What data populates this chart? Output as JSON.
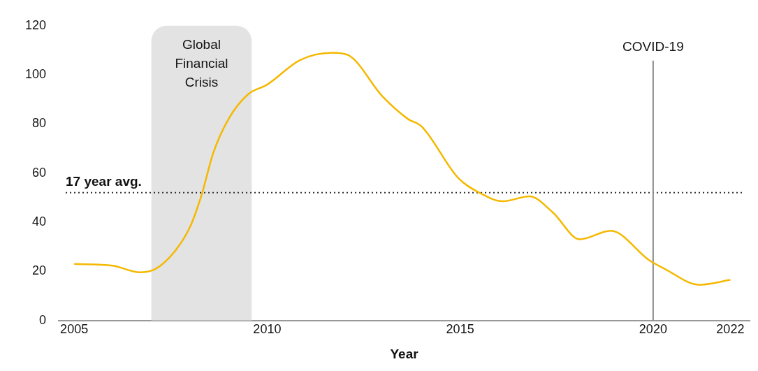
{
  "chart_data": {
    "type": "line",
    "xlabel": "Year",
    "x": [
      2005,
      2006,
      2006.7,
      2007.1,
      2007.6,
      2008,
      2008.3,
      2008.6,
      2009,
      2009.5,
      2010,
      2010.85,
      2011.7,
      2012.1,
      2013,
      2013.65,
      2014,
      2014.95,
      2015.5,
      2016.1,
      2016.8,
      2017.4,
      2018.1,
      2018.9,
      2019.9,
      2020.3,
      2021.2,
      2022
    ],
    "series": [
      {
        "color": "#f5b800",
        "values": [
          23,
          22.3,
          19.6,
          20.9,
          28,
          38,
          51,
          68,
          82,
          92,
          96,
          106,
          109,
          108,
          91,
          82,
          79,
          58,
          52,
          48.5,
          50.5,
          44,
          33,
          36.5,
          24.5,
          21,
          14.5,
          16.5
        ]
      }
    ],
    "xlim": [
      2004.6,
      2022.5
    ],
    "xticks": [
      2005,
      2010,
      2015,
      2020,
      2022
    ],
    "ylim": [
      0,
      120
    ],
    "yticks": [
      0,
      20,
      40,
      60,
      80,
      100,
      120
    ],
    "ref_lines": [
      {
        "axis": "y",
        "value": 52,
        "label": "17 year avg.",
        "color": "#333333",
        "line_style": "dotted"
      },
      {
        "axis": "x",
        "value": 2020,
        "label": "COVID-19",
        "color": "#8c8c8c",
        "line_style": "solid"
      }
    ],
    "bands": [
      {
        "axis": "x",
        "from": 2007,
        "to": 2009.6,
        "label": "Global Financial Crisis",
        "color": "#e3e3e3"
      }
    ],
    "grid": false,
    "legend": false,
    "marker": "none",
    "line_style": "solid"
  }
}
